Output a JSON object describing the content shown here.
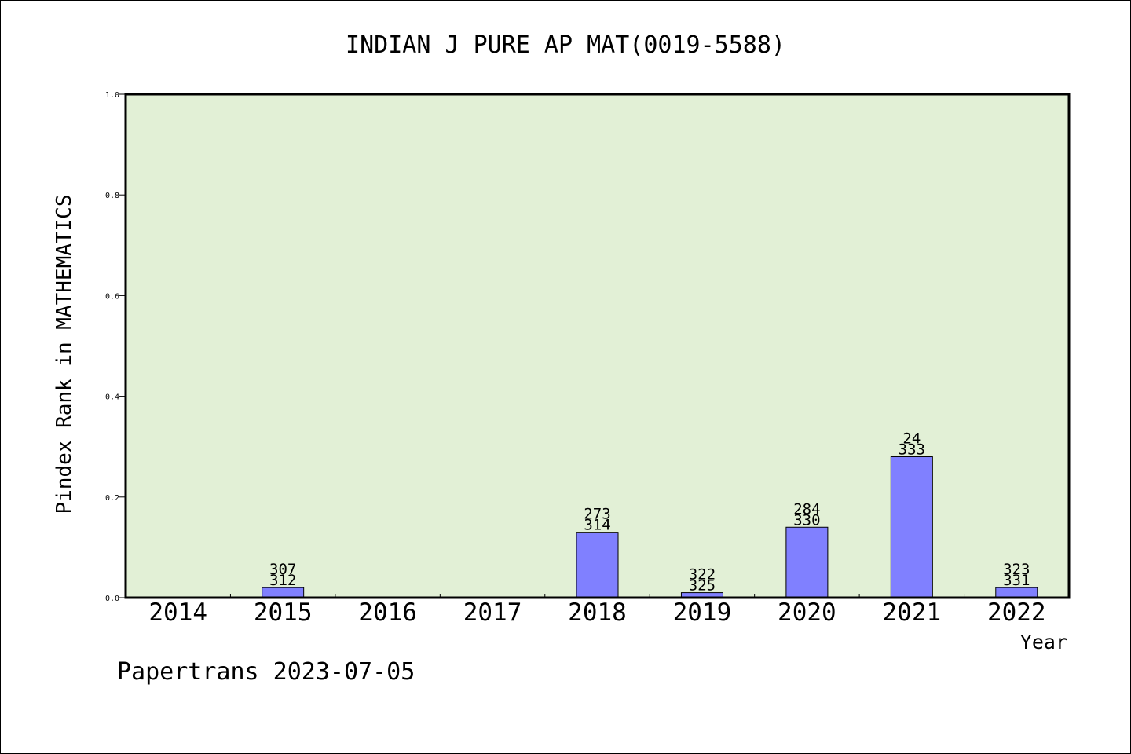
{
  "chart_data": {
    "type": "bar",
    "title": "INDIAN J PURE AP MAT(0019-5588)",
    "xlabel": "Year",
    "ylabel": "Pindex Rank in MATHEMATICS",
    "categories": [
      "2014",
      "2015",
      "2016",
      "2017",
      "2018",
      "2019",
      "2020",
      "2021",
      "2022"
    ],
    "values": [
      0,
      0.02,
      0,
      0,
      0.13,
      0.01,
      0.14,
      0.28,
      0.02
    ],
    "bar_labels": [
      [],
      [
        "307",
        "312"
      ],
      [],
      [],
      [
        "273",
        "314"
      ],
      [
        "322",
        "325"
      ],
      [
        "284",
        "330"
      ],
      [
        "24",
        "333"
      ],
      [
        "323",
        "331"
      ]
    ],
    "ylim": [
      0,
      1.0
    ],
    "yticks": [
      "0.0",
      "0.2",
      "0.4",
      "0.6",
      "0.8",
      "1.0"
    ],
    "grid": false,
    "colors": {
      "plot_bg": "#e2f0d6",
      "bar_fill": "#8080ff",
      "bar_stroke": "#000000"
    }
  },
  "footer": {
    "credit": "Papertrans 2023-07-05"
  }
}
